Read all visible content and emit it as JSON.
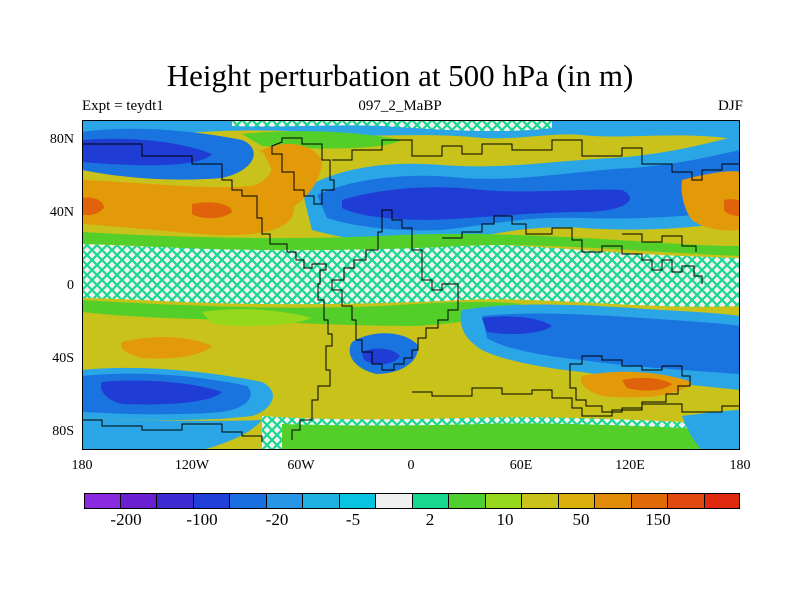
{
  "title": "Height perturbation at 500 hPa (in m)",
  "subtitle_left": "Expt = teydt1",
  "subtitle_center": "097_2_MaBP",
  "subtitle_right": "DJF",
  "lat_ticks": [
    "80N",
    "40N",
    "0",
    "40S",
    "80S"
  ],
  "lon_ticks": [
    "180",
    "120W",
    "60W",
    "0",
    "60E",
    "120E",
    "180"
  ],
  "colorbar": {
    "colors": [
      "#8a2be2",
      "#6a1fd0",
      "#3d2ad0",
      "#2040d8",
      "#1a6fe0",
      "#2896e6",
      "#1fb2e0",
      "#09c4e0",
      "#f0f0f0",
      "#18d890",
      "#4ed030",
      "#96d81c",
      "#c8c21a",
      "#dcb00c",
      "#e08c08",
      "#e06a08",
      "#e04a10",
      "#e02a10"
    ],
    "labels": [
      "-200",
      "-100",
      "-20",
      "-5",
      "2",
      "10",
      "50",
      "150"
    ]
  },
  "colors": {
    "strong_neg": "#1f3cd4",
    "neg": "#1a74e0",
    "weak_neg": "#2aa6e6",
    "neutral": "#f0f0f0",
    "weak_pos": "#18d890",
    "pos_green": "#54cf2a",
    "pos_yellow": "#c8c21a",
    "pos_orange": "#e39a08",
    "strong_pos": "#e0620a"
  }
}
